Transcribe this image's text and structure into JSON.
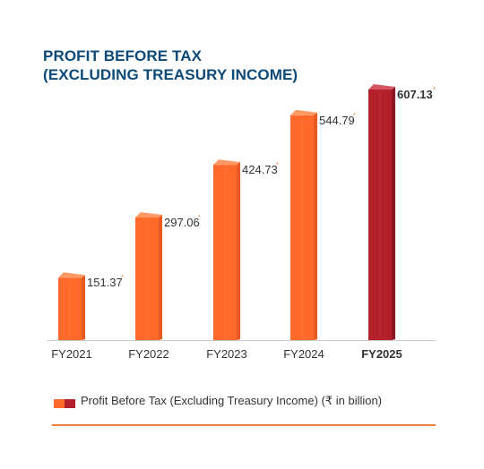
{
  "title_lines": [
    "PROFIT BEFORE TAX",
    "(EXCLUDING TREASURY INCOME)"
  ],
  "colors": {
    "title": "#0b4a78",
    "bar_front": "#ff6a2b",
    "bar_side": "#e85a1f",
    "bar_top": "#ff9a66",
    "highlight_front": "#b3202c",
    "highlight_side": "#8e1620",
    "highlight_top": "#d35660",
    "axis": "#cccccc",
    "label": "#333333",
    "rule": "#f07c3c",
    "asterisk": "#e8632a"
  },
  "chart_data": {
    "type": "bar",
    "categories": [
      "FY2021",
      "FY2022",
      "FY2023",
      "FY2024",
      "FY2025"
    ],
    "values": [
      151.37,
      297.06,
      424.73,
      544.79,
      607.13
    ],
    "value_labels": [
      "151.37",
      "297.06",
      "424.73",
      "544.79",
      "607.13"
    ],
    "value_label_marker": "*",
    "highlight_index": 4,
    "ylim": [
      0,
      607.13
    ],
    "title": "",
    "xlabel": "",
    "ylabel": "",
    "grid": false,
    "legend_position": "bottom",
    "series": [
      {
        "name": "Profit Before Tax (Excluding Treasury Income) (₹ in billion)",
        "values": [
          151.37,
          297.06,
          424.73,
          544.79,
          607.13
        ]
      }
    ]
  },
  "legend": {
    "label": "Profit Before Tax (Excluding Treasury Income) (₹ in billion)"
  }
}
